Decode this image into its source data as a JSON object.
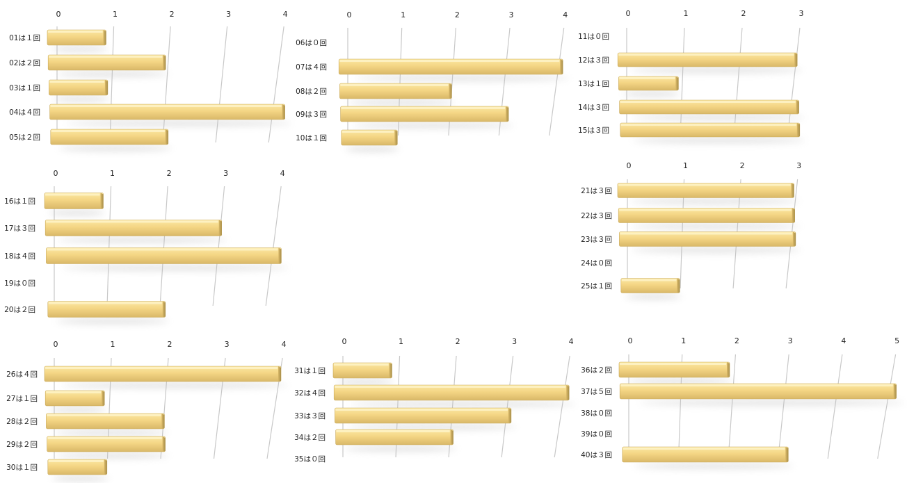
{
  "bar_colors": {
    "top": "#fbe8a4",
    "face": "#f4d584",
    "bottom": "#d9b868",
    "end": "#a88f4a",
    "shadow": "#bdbdbd"
  },
  "chart_data": [
    {
      "type": "bar",
      "orientation": "horizontal",
      "xticks": [
        "0",
        "1",
        "2",
        "3",
        "4"
      ],
      "xlim": [
        0,
        4
      ],
      "categories": [
        "01は１回",
        "02は２回",
        "03は１回",
        "04は４回",
        "05は２回"
      ],
      "values": [
        1,
        2,
        1,
        4,
        2
      ]
    },
    {
      "type": "bar",
      "orientation": "horizontal",
      "xticks": [
        "0",
        "1",
        "2",
        "3",
        "4"
      ],
      "xlim": [
        0,
        4
      ],
      "categories": [
        "06は０回",
        "07は４回",
        "08は２回",
        "09は３回",
        "10は１回"
      ],
      "values": [
        0,
        4,
        2,
        3,
        1
      ]
    },
    {
      "type": "bar",
      "orientation": "horizontal",
      "xticks": [
        "0",
        "1",
        "2",
        "3"
      ],
      "xlim": [
        0,
        3
      ],
      "categories": [
        "11は０回",
        "12は３回",
        "13は１回",
        "14は３回",
        "15は３回"
      ],
      "values": [
        0,
        3,
        1,
        3,
        3
      ]
    },
    {
      "type": "bar",
      "orientation": "horizontal",
      "xticks": [
        "0",
        "1",
        "2",
        "3",
        "4"
      ],
      "xlim": [
        0,
        4
      ],
      "categories": [
        "16は１回",
        "17は３回",
        "18は４回",
        "19は０回",
        "20は２回"
      ],
      "values": [
        1,
        3,
        4,
        0,
        2
      ]
    },
    {
      "type": "bar",
      "orientation": "horizontal",
      "xticks": [
        "0",
        "1",
        "2",
        "3"
      ],
      "xlim": [
        0,
        3
      ],
      "categories": [
        "21は３回",
        "22は３回",
        "23は３回",
        "24は０回",
        "25は１回"
      ],
      "values": [
        3,
        3,
        3,
        0,
        1
      ]
    },
    {
      "type": "bar",
      "orientation": "horizontal",
      "xticks": [
        "0",
        "1",
        "2",
        "3",
        "4"
      ],
      "xlim": [
        0,
        4
      ],
      "categories": [
        "26は４回",
        "27は１回",
        "28は２回",
        "29は２回",
        "30は１回"
      ],
      "values": [
        4,
        1,
        2,
        2,
        1
      ]
    },
    {
      "type": "bar",
      "orientation": "horizontal",
      "xticks": [
        "0",
        "1",
        "2",
        "3",
        "4"
      ],
      "xlim": [
        0,
        4
      ],
      "categories": [
        "31は１回",
        "32は４回",
        "33は３回",
        "34は２回",
        "35は０回"
      ],
      "values": [
        1,
        4,
        3,
        2,
        0
      ]
    },
    {
      "type": "bar",
      "orientation": "horizontal",
      "xticks": [
        "0",
        "1",
        "2",
        "3",
        "4",
        "5"
      ],
      "xlim": [
        0,
        5
      ],
      "categories": [
        "36は２回",
        "37は５回",
        "38は０回",
        "39は０回",
        "40は３回"
      ],
      "values": [
        2,
        5,
        0,
        0,
        3
      ]
    }
  ]
}
